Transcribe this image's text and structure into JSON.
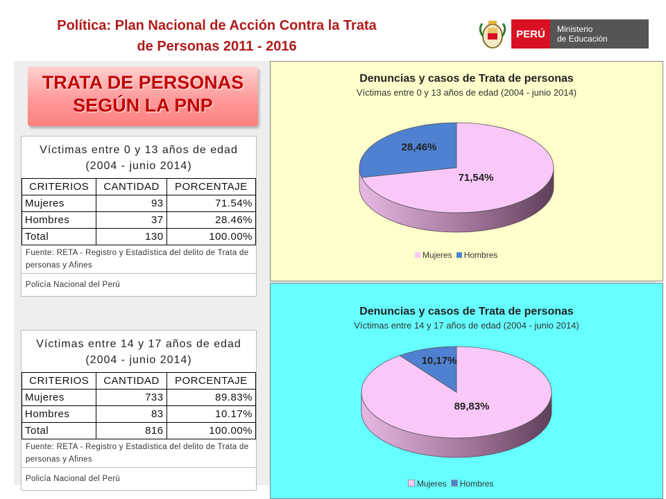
{
  "header": {
    "title_line1": "Política: Plan Nacional  de Acción Contra la Trata",
    "title_line2": "de Personas 2011 - 2016",
    "logo_peru": "PERÚ",
    "logo_min1": "Ministerio",
    "logo_min2": "de Educación"
  },
  "banner": {
    "line1": "TRATA DE PERSONAS",
    "line2": "SEGÚN LA PNP"
  },
  "table1": {
    "caption": "Víctimas entre 0 y 13 años de edad (2004 - junio 2014)",
    "headers": [
      "CRITERIOS",
      "CANTIDAD",
      "PORCENTAJE"
    ],
    "rows": [
      [
        "Mujeres",
        "93",
        "71.54%"
      ],
      [
        "Hombres",
        "37",
        "28.46%"
      ],
      [
        "Total",
        "130",
        "100.00%"
      ]
    ],
    "source": "Fuente: RETA - Registro y Estadística del delito de Trata de personas y Afines",
    "org": "Policía Nacional del Perú"
  },
  "table2": {
    "caption": "Víctimas entre 14 y 17 años de edad (2004 - junio 2014)",
    "headers": [
      "CRITERIOS",
      "CANTIDAD",
      "PORCENTAJE"
    ],
    "rows": [
      [
        "Mujeres",
        "733",
        "89.83%"
      ],
      [
        "Hombres",
        "83",
        "10.17%"
      ],
      [
        "Total",
        "816",
        "100.00%"
      ]
    ],
    "source": "Fuente: RETA - Registro y Estadística del delito de Trata de personas y Afines",
    "org": "Policía Nacional del Perú"
  },
  "colors": {
    "mujeres": "#f9c8f9",
    "hombres": "#4f81d0",
    "title_red": "#b01a1a",
    "chart1_bg": "#ffffcc",
    "chart2_bg": "#66ffff"
  },
  "chart_data": [
    {
      "type": "pie",
      "title": "Denuncias y casos de Trata de personas",
      "subtitle": "Víctimas entre 0 y 13 años de edad (2004 - junio 2014)",
      "categories": [
        "Mujeres",
        "Hombres"
      ],
      "values": [
        71.54,
        28.46
      ],
      "labels": [
        "71,54%",
        "28,46%"
      ],
      "legend": "bottom"
    },
    {
      "type": "pie",
      "title": "Denuncias y casos de Trata de personas",
      "subtitle": "Víctimas entre 14 y 17 años de edad (2004 - junio 2014)",
      "categories": [
        "Mujeres",
        "Hombres"
      ],
      "values": [
        89.83,
        10.17
      ],
      "labels": [
        "89,83%",
        "10,17%"
      ],
      "legend": "bottom"
    }
  ]
}
